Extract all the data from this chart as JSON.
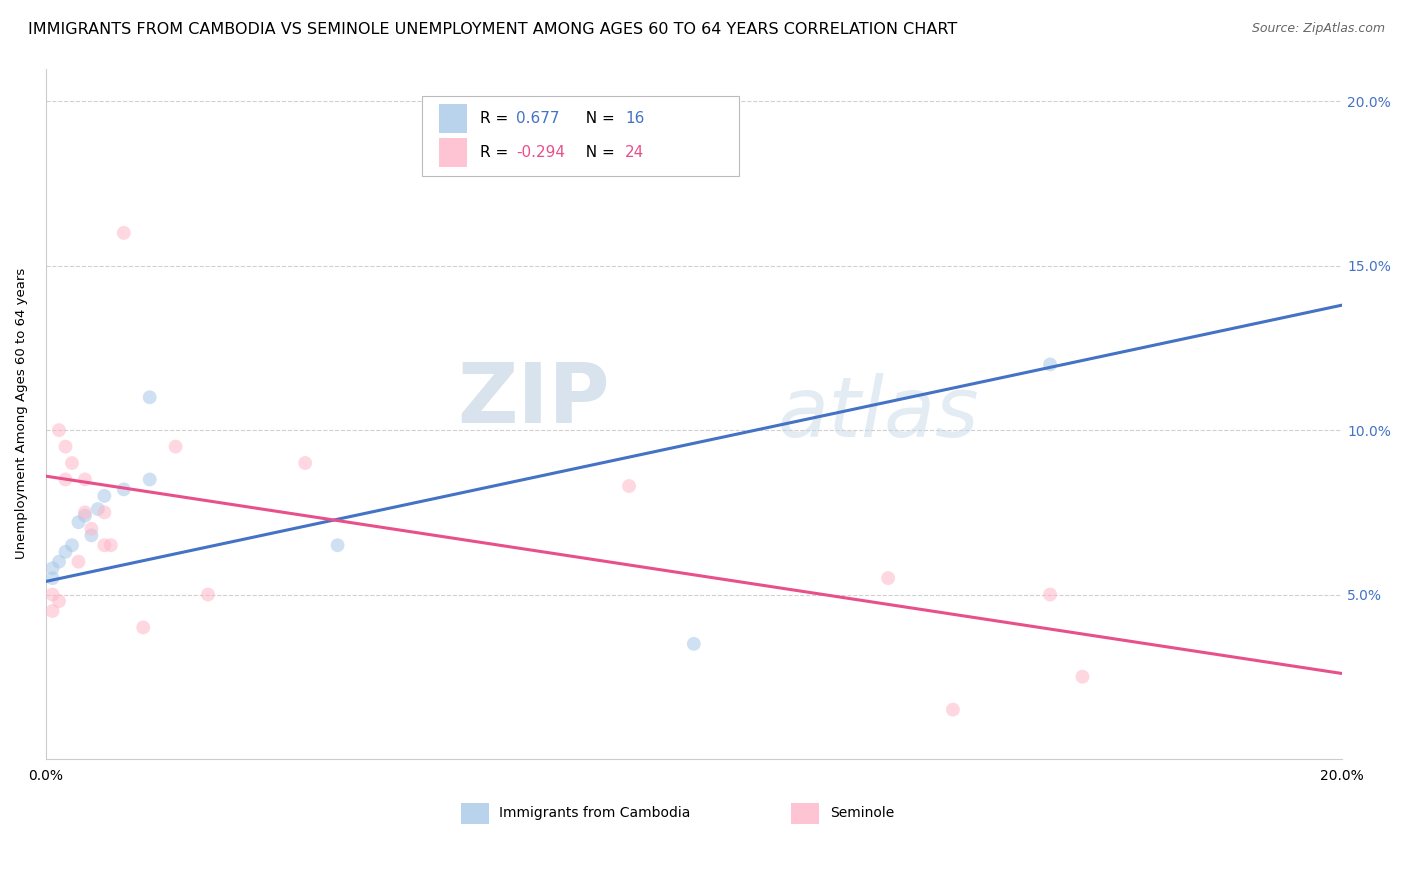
{
  "title": "IMMIGRANTS FROM CAMBODIA VS SEMINOLE UNEMPLOYMENT AMONG AGES 60 TO 64 YEARS CORRELATION CHART",
  "source": "Source: ZipAtlas.com",
  "ylabel": "Unemployment Among Ages 60 to 64 years",
  "xmin": 0.0,
  "xmax": 0.2,
  "ymin": 0.0,
  "ymax": 0.21,
  "yticks": [
    0.05,
    0.1,
    0.15,
    0.2
  ],
  "ytick_labels": [
    "5.0%",
    "10.0%",
    "15.0%",
    "20.0%"
  ],
  "background_color": "#ffffff",
  "scatter_alpha": 0.55,
  "scatter_size": 100,
  "grid_color": "#d0d0d0",
  "title_fontsize": 11.5,
  "axis_label_fontsize": 9.5,
  "tick_fontsize": 10,
  "legend_fontsize": 11,
  "source_fontsize": 9,
  "blue_color": "#a8c8e8",
  "pink_color": "#ffb6c8",
  "blue_line_color": "#4472c4",
  "pink_line_color": "#e8508a",
  "blue_scatter_x": [
    0.001,
    0.001,
    0.002,
    0.003,
    0.004,
    0.005,
    0.006,
    0.007,
    0.008,
    0.009,
    0.012,
    0.016,
    0.016,
    0.045,
    0.1,
    0.155
  ],
  "blue_scatter_y": [
    0.055,
    0.058,
    0.06,
    0.063,
    0.065,
    0.072,
    0.074,
    0.068,
    0.076,
    0.08,
    0.082,
    0.085,
    0.11,
    0.065,
    0.035,
    0.12
  ],
  "pink_scatter_x": [
    0.001,
    0.001,
    0.002,
    0.002,
    0.003,
    0.003,
    0.004,
    0.005,
    0.006,
    0.006,
    0.007,
    0.009,
    0.009,
    0.01,
    0.012,
    0.015,
    0.02,
    0.025,
    0.04,
    0.09,
    0.13,
    0.14,
    0.155,
    0.16
  ],
  "pink_scatter_y": [
    0.045,
    0.05,
    0.048,
    0.1,
    0.095,
    0.085,
    0.09,
    0.06,
    0.075,
    0.085,
    0.07,
    0.065,
    0.075,
    0.065,
    0.16,
    0.04,
    0.095,
    0.05,
    0.09,
    0.083,
    0.055,
    0.015,
    0.05,
    0.025
  ],
  "blue_line_y_start": 0.054,
  "blue_line_y_end": 0.138,
  "pink_line_y_start": 0.086,
  "pink_line_y_end": 0.026,
  "watermark_zip": "ZIP",
  "watermark_atlas": "atlas",
  "r_blue": "0.677",
  "n_blue": "16",
  "r_pink": "-0.294",
  "n_pink": "24"
}
